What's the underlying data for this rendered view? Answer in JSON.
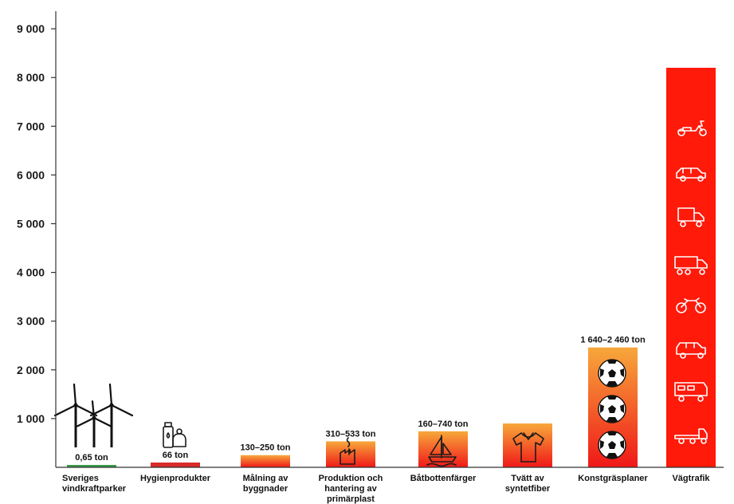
{
  "chart_data": {
    "type": "bar",
    "ylim": [
      0,
      9200
    ],
    "yticks": [
      1000,
      2000,
      3000,
      4000,
      5000,
      6000,
      7000,
      8000,
      9000
    ],
    "ytick_labels": [
      "1 000",
      "2 000",
      "3 000",
      "4 000",
      "5 000",
      "6 000",
      "7 000",
      "8 000",
      "9 000"
    ],
    "grid": false,
    "categories": [
      [
        "Sveriges",
        "vindkraftparker"
      ],
      [
        "Hygienprodukter"
      ],
      [
        "Målning av",
        "byggnader"
      ],
      [
        "Produktion och",
        "hantering av",
        "primärplast"
      ],
      [
        "Båtbottenfärger"
      ],
      [
        "Tvätt av",
        "syntetfiber"
      ],
      [
        "Konstgräsplaner"
      ],
      [
        "Vägtrafik"
      ]
    ],
    "values": [
      0.65,
      66,
      250,
      533,
      740,
      900,
      2460,
      8200
    ],
    "value_labels": [
      "0,65 ton",
      "66 ton",
      "130–250 ton",
      "310–533 ton",
      "160–740 ton",
      "",
      "1 640–2 460 ton",
      ""
    ],
    "colors": {
      "Sveriges vindkraftparker": "#3a9a4a",
      "Hygienprodukter": "#d92a2a",
      "gradient_top": "#f7a83b",
      "gradient_bottom": "#f01818",
      "Vägtrafik": "#ff1a0a",
      "axis": "#333333"
    },
    "icons": [
      "wind-turbines-icon",
      "hygiene-products-icon",
      "",
      "factory-icon",
      "sailboat-icon",
      "tshirt-icon",
      "soccer-ball-icon",
      "vehicles-icon"
    ]
  }
}
